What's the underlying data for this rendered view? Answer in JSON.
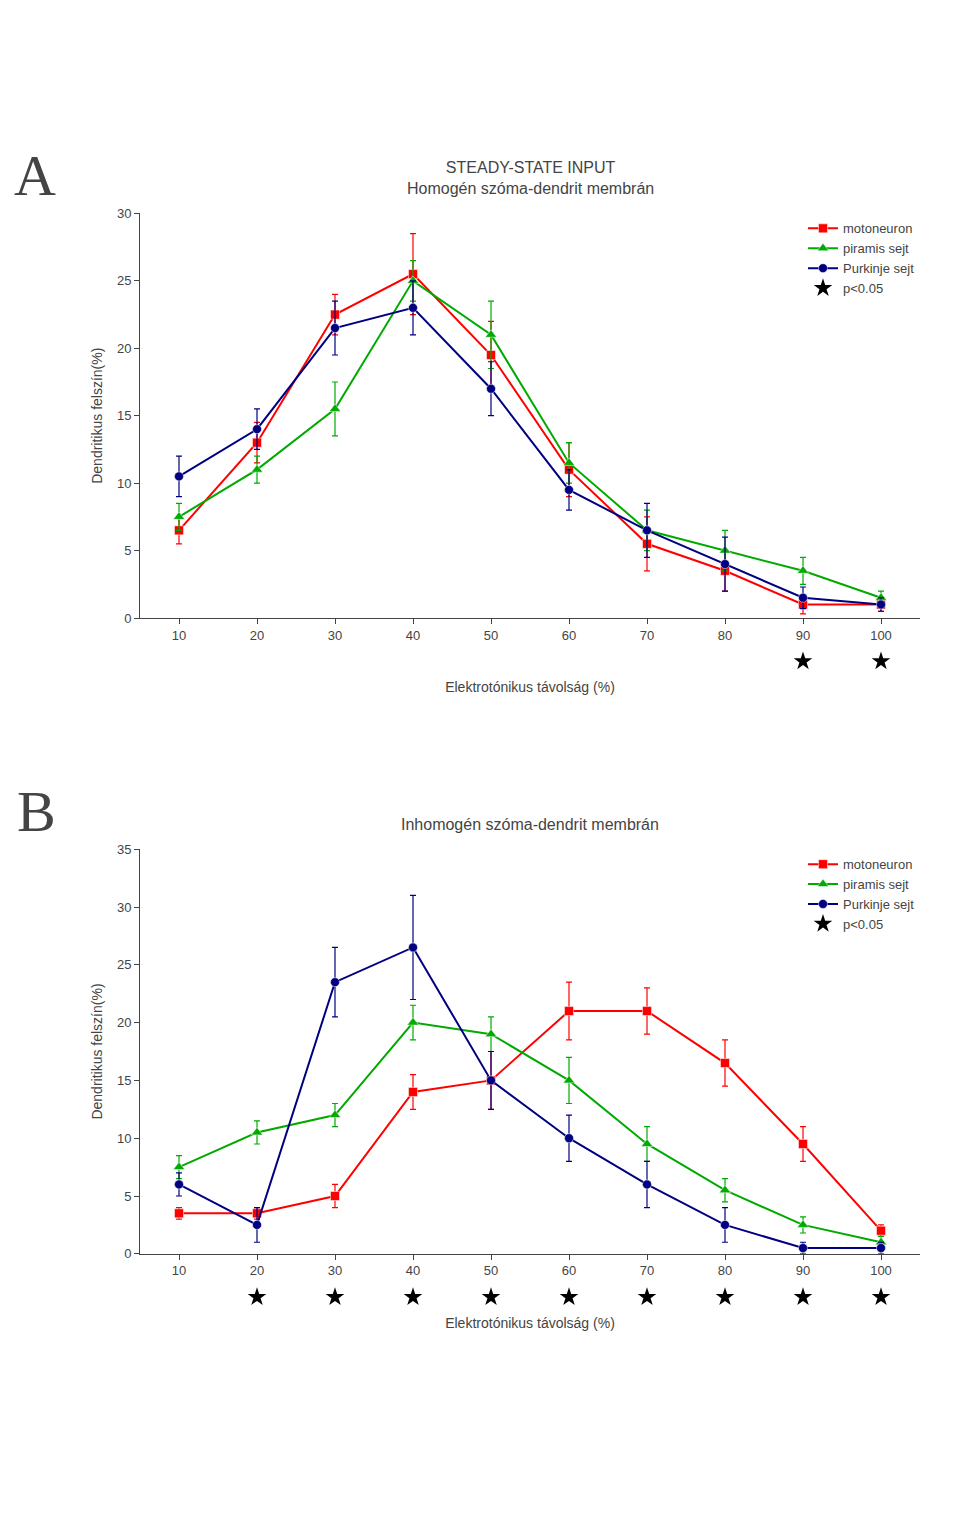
{
  "chart_data": [
    {
      "type": "line",
      "title": "STEADY-STATE INPUT",
      "subtitle": "Homogén szóma-dendrit membrán",
      "xlabel": "Elektrotónikus távolság (%)",
      "ylabel": "Dendritikus felszín(%)",
      "x": [
        10,
        20,
        30,
        40,
        50,
        60,
        70,
        80,
        90,
        100
      ],
      "series": [
        {
          "name": "motoneuron",
          "color": "#ff0000",
          "marker": "square",
          "values": [
            6.5,
            13.0,
            22.5,
            25.5,
            19.5,
            11.0,
            5.5,
            3.5,
            1.0,
            1.0
          ],
          "errors": [
            1.0,
            1.5,
            1.5,
            3.0,
            2.5,
            2.0,
            2.0,
            1.5,
            0.7,
            0.5
          ]
        },
        {
          "name": "piramis sejt",
          "color": "#00aa00",
          "marker": "triangle-up",
          "values": [
            7.5,
            11.0,
            15.5,
            25.0,
            21.0,
            11.5,
            6.5,
            5.0,
            3.5,
            1.5
          ],
          "errors": [
            1.0,
            1.0,
            2.0,
            1.5,
            2.5,
            1.5,
            1.5,
            1.5,
            1.0,
            0.5
          ]
        },
        {
          "name": "Purkinje sejt",
          "color": "#000080",
          "marker": "circle",
          "values": [
            10.5,
            14.0,
            21.5,
            23.0,
            17.0,
            9.5,
            6.5,
            4.0,
            1.5,
            1.0
          ],
          "errors": [
            1.5,
            1.5,
            2.0,
            2.0,
            2.0,
            1.5,
            2.0,
            2.0,
            0.8,
            0.5
          ]
        },
        {
          "name": "p<0.05",
          "type": "scatter",
          "color": "#000000",
          "marker": "star",
          "x": [
            90,
            100
          ]
        }
      ],
      "xlim": [
        5,
        105
      ],
      "xticks": [
        10,
        20,
        30,
        40,
        50,
        60,
        70,
        80,
        90,
        100
      ],
      "ylim": [
        0,
        30
      ],
      "yticks": [
        0,
        5,
        10,
        15,
        20,
        25,
        30
      ],
      "grid": false,
      "legend": "upper right",
      "annotations": [
        {
          "text": "A"
        }
      ]
    },
    {
      "type": "line",
      "title": "Inhomogén szóma-dendrit membrán",
      "xlabel": "Elektrotónikus távolság (%)",
      "ylabel": "Dendritikus felszín(%)",
      "x": [
        10,
        20,
        30,
        40,
        50,
        60,
        70,
        80,
        90,
        100
      ],
      "series": [
        {
          "name": "motoneuron",
          "color": "#ff0000",
          "marker": "square",
          "values": [
            3.5,
            3.5,
            5.0,
            14.0,
            15.0,
            21.0,
            21.0,
            16.5,
            9.5,
            2.0
          ],
          "errors": [
            0.5,
            0.5,
            1.0,
            1.5,
            2.5,
            2.5,
            2.0,
            2.0,
            1.5,
            0.5
          ]
        },
        {
          "name": "piramis sejt",
          "color": "#00aa00",
          "marker": "triangle-up",
          "values": [
            7.5,
            10.5,
            12.0,
            20.0,
            19.0,
            15.0,
            9.5,
            5.5,
            2.5,
            1.0
          ],
          "errors": [
            1.0,
            1.0,
            1.0,
            1.5,
            1.5,
            2.0,
            1.5,
            1.0,
            0.7,
            0.5
          ]
        },
        {
          "name": "Purkinje sejt",
          "color": "#000080",
          "marker": "circle",
          "values": [
            6.0,
            2.5,
            23.5,
            26.5,
            15.0,
            10.0,
            6.0,
            2.5,
            0.5,
            0.5
          ],
          "errors": [
            1.0,
            1.5,
            3.0,
            4.5,
            2.5,
            2.0,
            2.0,
            1.5,
            0.5,
            0.5
          ]
        },
        {
          "name": "p<0.05",
          "type": "scatter",
          "color": "#000000",
          "marker": "star",
          "x": [
            20,
            30,
            40,
            50,
            60,
            70,
            80,
            90,
            100
          ]
        }
      ],
      "xlim": [
        5,
        105
      ],
      "xticks": [
        10,
        20,
        30,
        40,
        50,
        60,
        70,
        80,
        90,
        100
      ],
      "ylim": [
        0,
        35
      ],
      "yticks": [
        0,
        5,
        10,
        15,
        20,
        25,
        30,
        35
      ],
      "grid": false,
      "legend": "upper right",
      "annotations": [
        {
          "text": "B"
        }
      ]
    }
  ]
}
